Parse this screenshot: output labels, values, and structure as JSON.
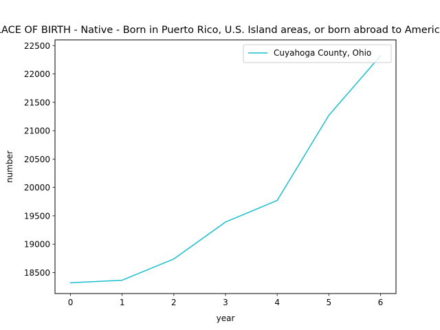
{
  "chart_data": {
    "type": "line",
    "title": "Estimate; PLACE OF BIRTH - Native - Born in Puerto Rico, U.S. Island areas, or born abroad to American parent(s)",
    "xlabel": "year",
    "ylabel": "number",
    "x": [
      0,
      1,
      2,
      3,
      4,
      5,
      6
    ],
    "xticks": [
      "0",
      "1",
      "2",
      "3",
      "4",
      "5",
      "6"
    ],
    "yticks": [
      "18500",
      "19000",
      "19500",
      "20000",
      "20500",
      "21000",
      "21500",
      "22000",
      "22500"
    ],
    "xlim": [
      -0.3,
      6.3
    ],
    "ylim": [
      18130,
      22600
    ],
    "grid": false,
    "legend_position": "upper right",
    "series": [
      {
        "name": "Cuyahoga County, Ohio",
        "color": "#17becf",
        "values": [
          18320,
          18365,
          18740,
          19390,
          19770,
          21270,
          22320
        ]
      }
    ]
  }
}
